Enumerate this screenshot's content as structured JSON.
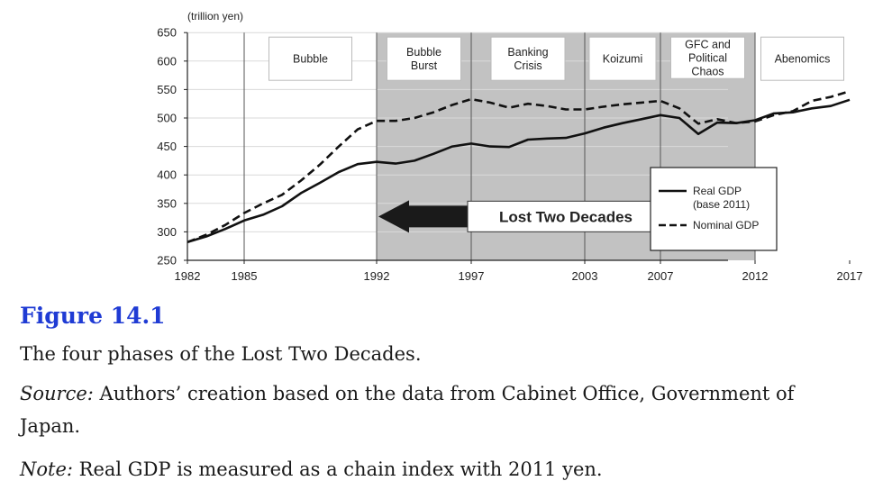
{
  "chart_data": {
    "type": "line",
    "unit_label": "(trillion yen)",
    "ylim": [
      250,
      650
    ],
    "y_ticks": [
      250,
      300,
      350,
      400,
      450,
      500,
      550,
      600,
      650
    ],
    "xlim": [
      1982,
      2018
    ],
    "x_ticks": [
      1982,
      1985,
      1992,
      1997,
      2003,
      2007,
      2012,
      2017
    ],
    "grid": "horizontal",
    "legend_position": "right",
    "shaded_periods": [
      {
        "label": "Bubble",
        "start": 1985,
        "end": 1992,
        "shaded": false
      },
      {
        "label": "Bubble\nBurst",
        "start": 1992,
        "end": 1997,
        "shaded": true
      },
      {
        "label": "Banking\nCrisis",
        "start": 1997,
        "end": 2003,
        "shaded": true
      },
      {
        "label": "Koizumi",
        "start": 2003,
        "end": 2007,
        "shaded": true
      },
      {
        "label": "GFC and\nPolitical\nChaos",
        "start": 2007,
        "end": 2012,
        "shaded": true
      },
      {
        "label": "Abenomics",
        "start": 2012,
        "end": 2017,
        "shaded": false
      }
    ],
    "annotation": "Lost Two Decades",
    "annotation_range": [
      1992,
      2012
    ],
    "series": [
      {
        "name": "Real GDP\n(base 2011)",
        "style": "solid",
        "x": [
          1982,
          1983,
          1984,
          1985,
          1986,
          1987,
          1988,
          1989,
          1990,
          1991,
          1992,
          1993,
          1994,
          1995,
          1996,
          1997,
          1998,
          1999,
          2000,
          2001,
          2002,
          2003,
          2004,
          2005,
          2006,
          2007,
          2008,
          2009,
          2010,
          2011,
          2012,
          2013,
          2014,
          2015,
          2016,
          2017
        ],
        "values": [
          282,
          292,
          305,
          320,
          330,
          345,
          368,
          386,
          405,
          419,
          423,
          420,
          425,
          437,
          450,
          455,
          450,
          449,
          462,
          464,
          465,
          473,
          483,
          491,
          498,
          505,
          500,
          472,
          492,
          491,
          496,
          508,
          510,
          517,
          521,
          532
        ]
      },
      {
        "name": "Nominal GDP",
        "style": "dashed",
        "x": [
          1982,
          1983,
          1984,
          1985,
          1986,
          1987,
          1988,
          1989,
          1990,
          1991,
          1992,
          1993,
          1994,
          1995,
          1996,
          1997,
          1998,
          1999,
          2000,
          2001,
          2002,
          2003,
          2004,
          2005,
          2006,
          2007,
          2008,
          2009,
          2010,
          2011,
          2012,
          2013,
          2014,
          2015,
          2016,
          2017
        ],
        "values": [
          282,
          295,
          312,
          333,
          350,
          365,
          390,
          418,
          450,
          480,
          495,
          495,
          500,
          510,
          523,
          533,
          527,
          518,
          525,
          521,
          515,
          515,
          520,
          524,
          527,
          530,
          517,
          490,
          498,
          491,
          494,
          505,
          512,
          530,
          537,
          547
        ]
      }
    ]
  },
  "caption": {
    "figure_label": "Figure 14.1",
    "description": "The four phases of the Lost Two Decades.",
    "source_label": "Source:",
    "source_text": " Authors’ creation based on the data from Cabinet Office, Government of",
    "source_text_cont": "Japan.",
    "note_label": "Note:",
    "note_text": " Real GDP is measured as a chain index with 2011 yen."
  }
}
